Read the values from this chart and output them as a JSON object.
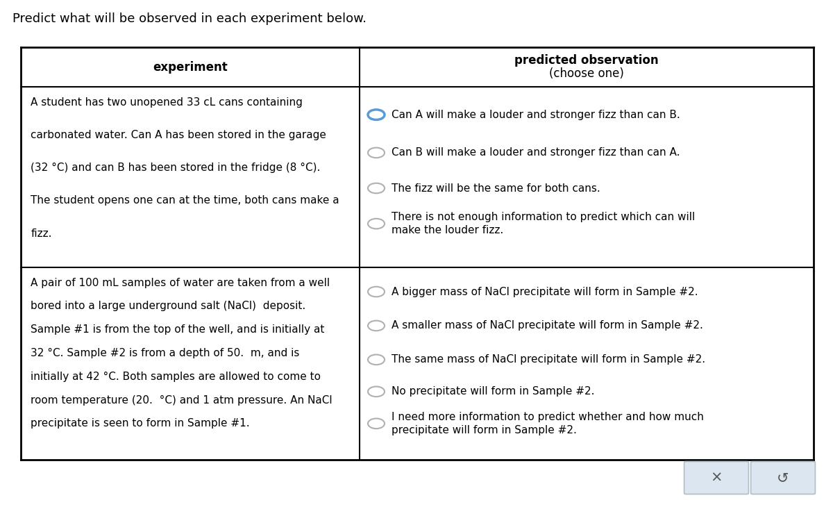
{
  "title": "Predict what will be observed in each experiment below.",
  "col1_header": "experiment",
  "col2_header_bold": "predicted observation",
  "col2_header_normal": "(choose one)",
  "background_color": "#ffffff",
  "row1_experiment_lines": [
    "A student has two unopened 33 cL cans containing",
    "carbonated water. Can A has been stored in the garage",
    "(32 °C) and can B has been stored in the fridge (8 °C).",
    "The student opens one can at the time, both cans make a",
    "fizz."
  ],
  "row1_options": [
    "Can A will make a louder and stronger fizz than can B.",
    "Can B will make a louder and stronger fizz than can A.",
    "The fizz will be the same for both cans.",
    "There is not enough information to predict which can will\nmake the louder fizz."
  ],
  "row1_selected": 0,
  "row2_experiment_lines": [
    "A pair of 100 mL samples of water are taken from a well",
    "bored into a large underground salt (NaCl)  deposit.",
    "Sample #1 is from the top of the well, and is initially at",
    "32 °C. Sample #2 is from a depth of 50.  m, and is",
    "initially at 42 °C. Both samples are allowed to come to",
    "room temperature (20.  °C) and 1 atm pressure. An NaCl",
    "precipitate is seen to form in Sample #1."
  ],
  "row2_options": [
    "A bigger mass of NaCl precipitate will form in Sample #2.",
    "A smaller mass of NaCl precipitate will form in Sample #2.",
    "The same mass of NaCl precipitate will form in Sample #2.",
    "No precipitate will form in Sample #2.",
    "I need more information to predict whether and how much\nprecipitate will form in Sample #2."
  ],
  "row2_selected": -1,
  "selected_circle_color": "#5b9bd5",
  "unselected_circle_color": "#b0b0b0",
  "font_size_title": 13,
  "font_size_header": 12,
  "font_size_body": 11,
  "button_bg": "#dce6f0",
  "button_border": "#b0bec5",
  "table_border_color": "#000000"
}
